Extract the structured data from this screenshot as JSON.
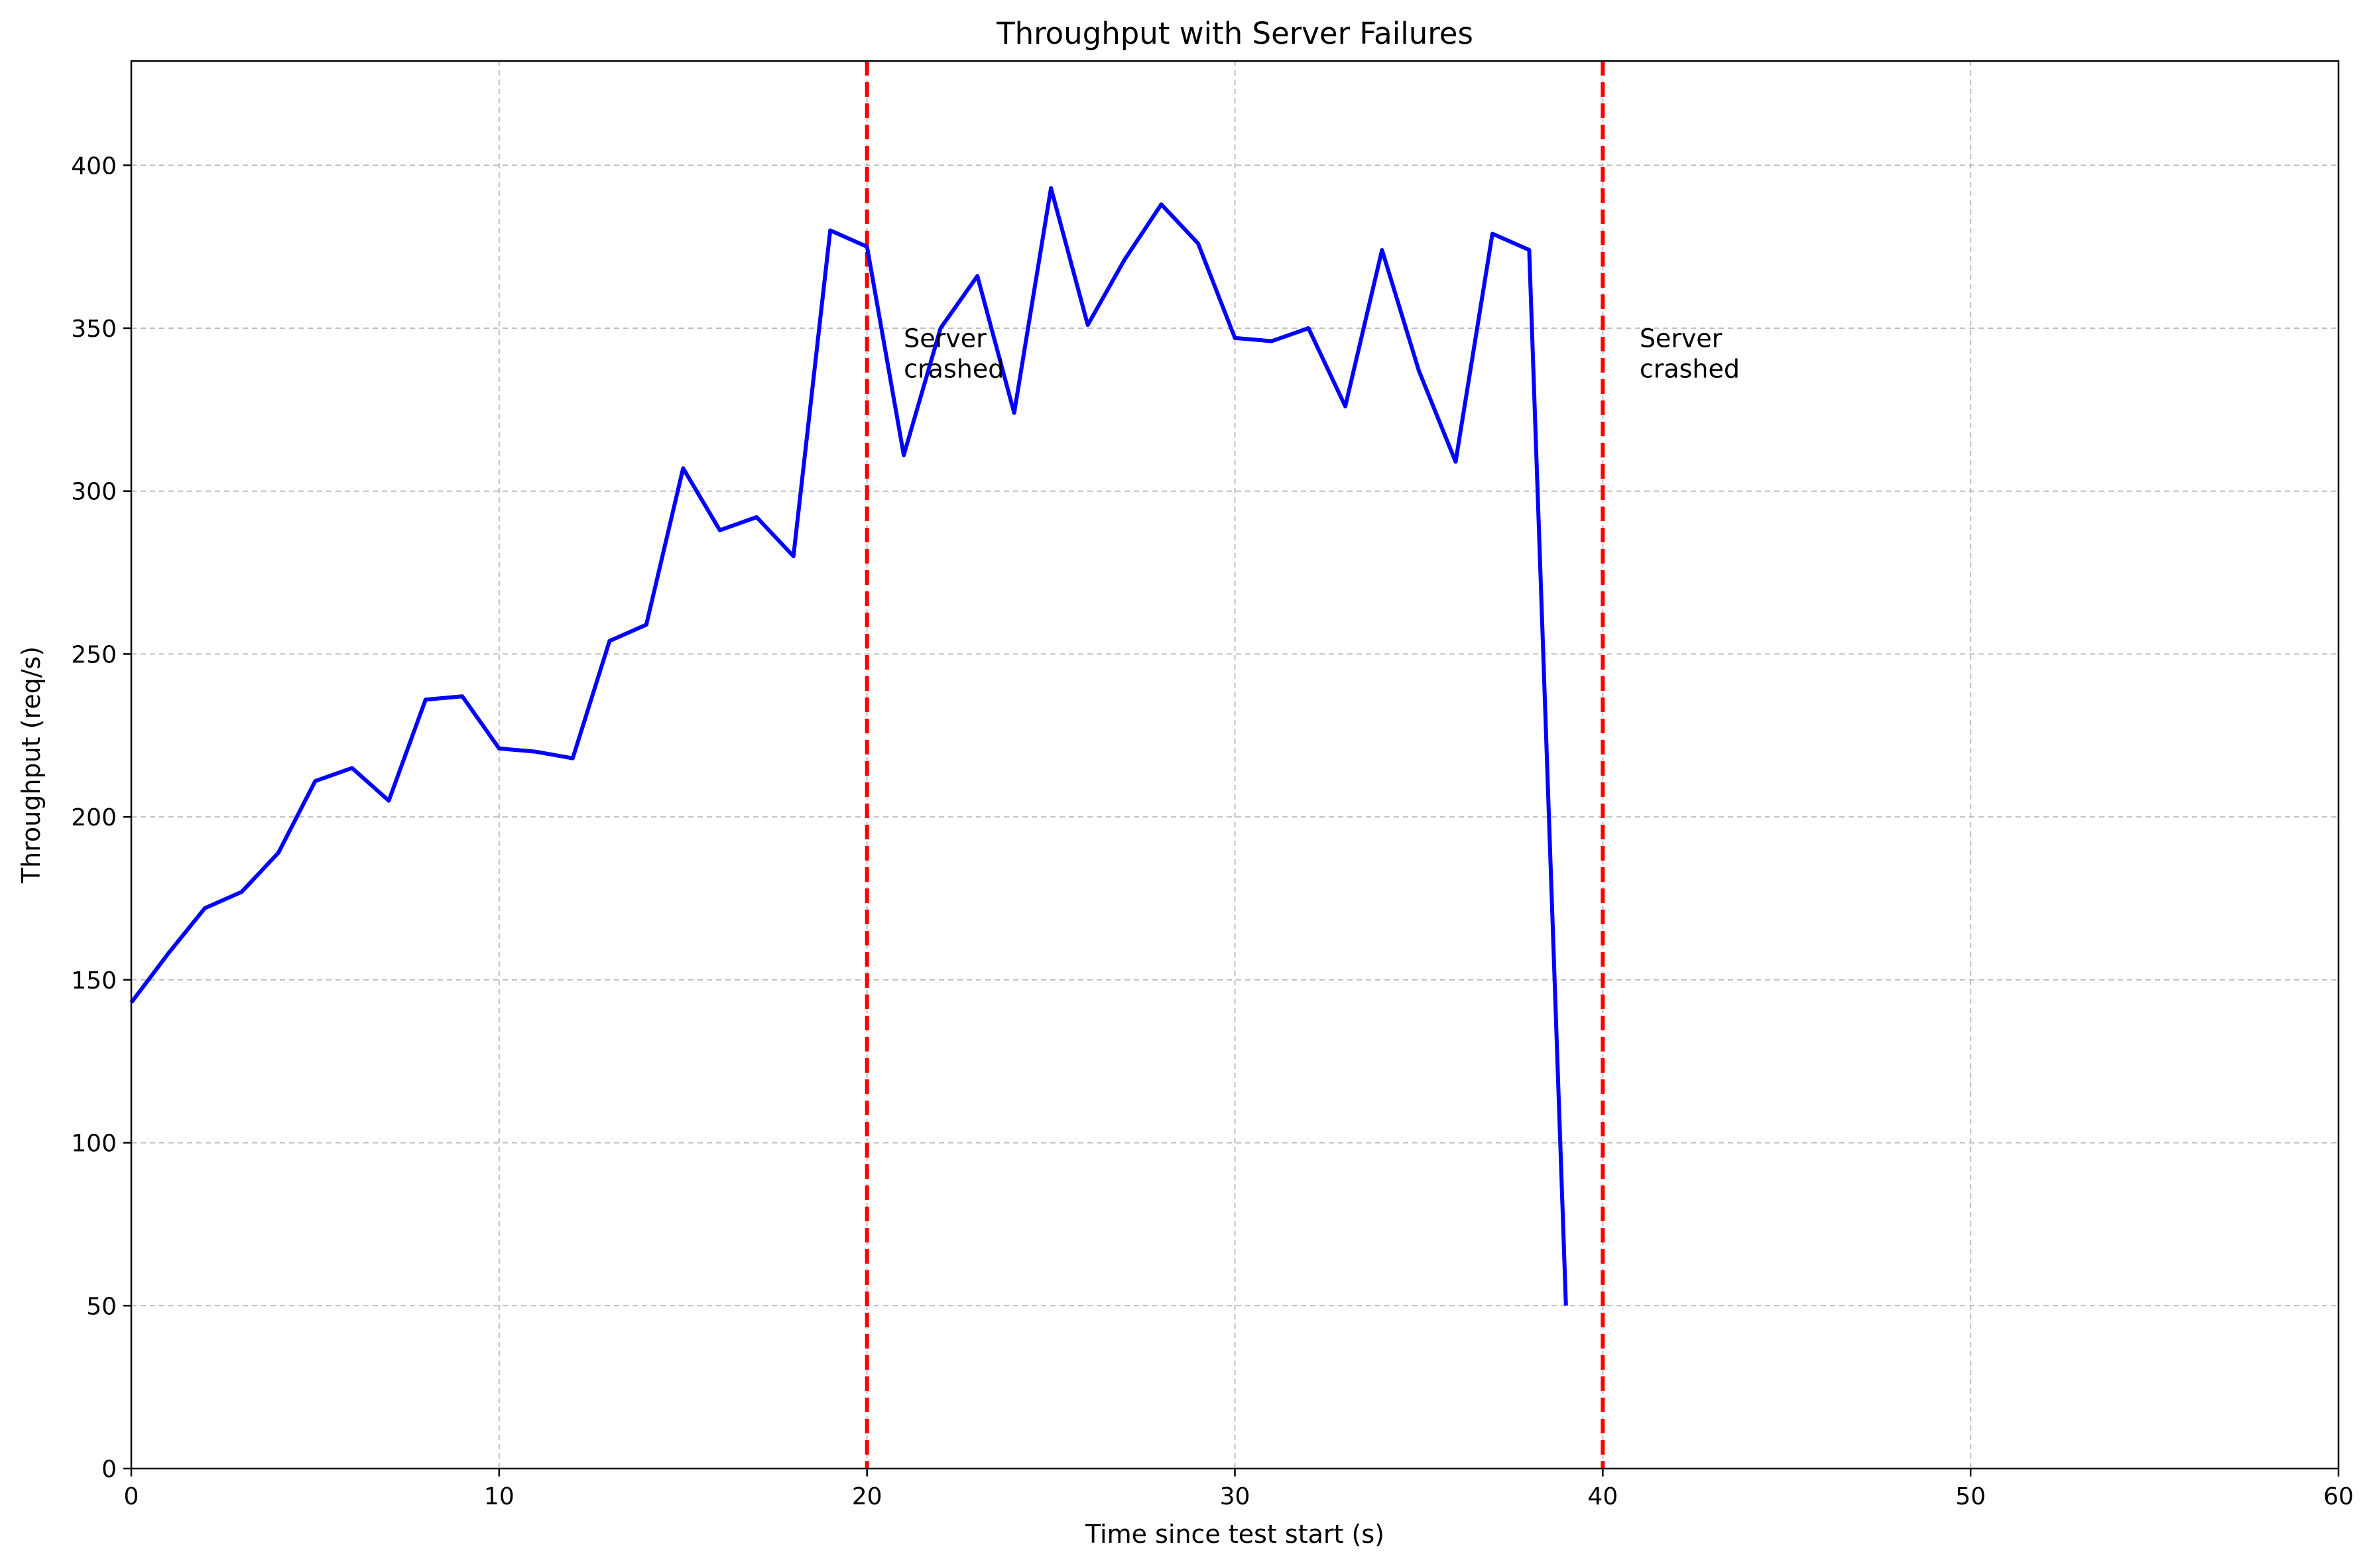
{
  "chart_data": {
    "type": "line",
    "title": "Throughput with Server Failures",
    "xlabel": "Time since test start (s)",
    "ylabel": "Throughput (req/s)",
    "xlim": [
      0,
      60
    ],
    "ylim": [
      0,
      432
    ],
    "xticks": [
      0,
      10,
      20,
      30,
      40,
      50,
      60
    ],
    "yticks": [
      0,
      50,
      100,
      150,
      200,
      250,
      300,
      350,
      400
    ],
    "grid": true,
    "grid_style": "dashed",
    "series": [
      {
        "color": "#0000ff",
        "x": [
          0,
          1,
          2,
          3,
          4,
          5,
          6,
          7,
          8,
          9,
          10,
          11,
          12,
          13,
          14,
          15,
          16,
          17,
          18,
          19,
          20,
          21,
          22,
          23,
          24,
          25,
          26,
          27,
          28,
          29,
          30,
          31,
          32,
          33,
          34,
          35,
          36,
          37,
          38,
          39
        ],
        "values": [
          143,
          158,
          172,
          177,
          189,
          211,
          215,
          205,
          236,
          237,
          221,
          220,
          218,
          254,
          259,
          307,
          288,
          292,
          280,
          380,
          375,
          311,
          350,
          366,
          324,
          393,
          351,
          371,
          388,
          376,
          347,
          346,
          350,
          326,
          374,
          337,
          309,
          379,
          374,
          50
        ]
      }
    ],
    "vlines": [
      {
        "x": 20,
        "color": "#ff0000",
        "style": "dashed"
      },
      {
        "x": 40,
        "color": "#ff0000",
        "style": "dashed"
      }
    ],
    "annotations": [
      {
        "x": 21,
        "y": 343,
        "lines": [
          "Server",
          "crashed"
        ]
      },
      {
        "x": 41,
        "y": 343,
        "lines": [
          "Server",
          "crashed"
        ]
      }
    ]
  }
}
